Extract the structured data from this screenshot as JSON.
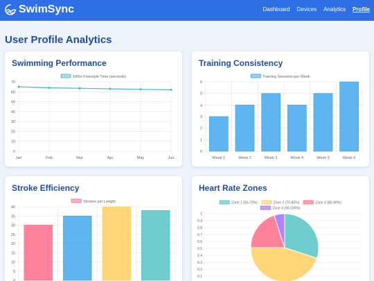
{
  "app": {
    "name": "SwimSync",
    "logo_icon": "wave-icon"
  },
  "nav": {
    "items": [
      "Dashboard",
      "Devices",
      "Analytics",
      "Profile"
    ],
    "active": "Profile"
  },
  "page": {
    "title": "User Profile Analytics"
  },
  "cards": [
    {
      "title": "Swimming Performance"
    },
    {
      "title": "Training Consistency"
    },
    {
      "title": "Stroke Efficiency"
    },
    {
      "title": "Heart Rate Zones"
    }
  ],
  "chart_data": [
    {
      "type": "line",
      "series": [
        {
          "name": "100m Freestyle Time (seconds)",
          "values": [
            65,
            64,
            63.5,
            63,
            62.5,
            62
          ],
          "color": "#4bc0c0"
        }
      ],
      "categories": [
        "Jan",
        "Feb",
        "Mar",
        "Apr",
        "May",
        "Jun"
      ],
      "ylim": [
        0,
        70
      ],
      "yticks": [
        0,
        10,
        20,
        30,
        40,
        50,
        60,
        70
      ],
      "legend": "top",
      "grid": true
    },
    {
      "type": "bar",
      "series": [
        {
          "name": "Training Sessions per Week",
          "values": [
            3,
            4,
            5,
            4,
            5,
            6
          ],
          "color": "#36a2eb"
        }
      ],
      "categories": [
        "Week 1",
        "Week 2",
        "Week 3",
        "Week 4",
        "Week 5",
        "Week 6"
      ],
      "ylim": [
        0,
        6
      ],
      "yticks": [
        0,
        1,
        2,
        3,
        4,
        5,
        6
      ],
      "legend": "top",
      "grid": true
    },
    {
      "type": "bar",
      "series": [
        {
          "name": "Strokes per Length",
          "values": [
            30,
            35,
            40,
            38
          ]
        }
      ],
      "colors": [
        "#ff6384",
        "#36a2eb",
        "#ffcd56",
        "#4bc0c0"
      ],
      "legend_color": "#ff6384",
      "ylim": [
        0,
        40
      ],
      "yticks": [
        0,
        5,
        10,
        15,
        20,
        25,
        30,
        35,
        40
      ],
      "legend": "top",
      "grid": true
    },
    {
      "type": "pie",
      "labels": [
        "Zone 1 (60-70%)",
        "Zone 2 (70-80%)",
        "Zone 3 (80-90%)",
        "Zone 4 (90-100%)"
      ],
      "values": [
        30,
        45,
        20,
        5
      ],
      "colors": [
        "#4bc0c0",
        "#ffcd56",
        "#ff6384",
        "#9966ff"
      ],
      "yticks": [
        0,
        0.1,
        0.2,
        0.3,
        0.4,
        0.5,
        0.6,
        0.7,
        0.8,
        0.9,
        1
      ],
      "ylim": [
        0,
        1
      ],
      "legend": "top",
      "grid": true
    }
  ]
}
